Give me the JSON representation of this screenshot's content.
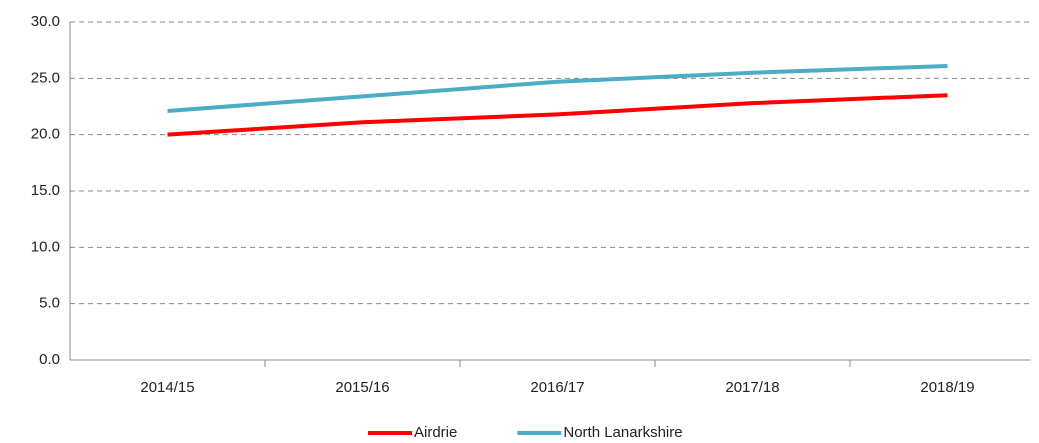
{
  "chart_data": {
    "type": "line",
    "categories": [
      "2014/15",
      "2015/16",
      "2016/17",
      "2017/18",
      "2018/19"
    ],
    "series": [
      {
        "name": "Airdrie",
        "color": "#ff0000",
        "values": [
          20.0,
          21.1,
          21.8,
          22.8,
          23.5
        ]
      },
      {
        "name": "North Lanarkshire",
        "color": "#4bacc6",
        "values": [
          22.1,
          23.4,
          24.7,
          25.5,
          26.1
        ]
      }
    ],
    "ylim": [
      0,
      30
    ],
    "yticks": [
      {
        "value": 0,
        "label": "0.0"
      },
      {
        "value": 5,
        "label": "5.0"
      },
      {
        "value": 10,
        "label": "10.0"
      },
      {
        "value": 15,
        "label": "15.0"
      },
      {
        "value": 20,
        "label": "20.0"
      },
      {
        "value": 25,
        "label": "25.0"
      },
      {
        "value": 30,
        "label": "30.0"
      }
    ],
    "grid": true,
    "legend": "bottom"
  }
}
